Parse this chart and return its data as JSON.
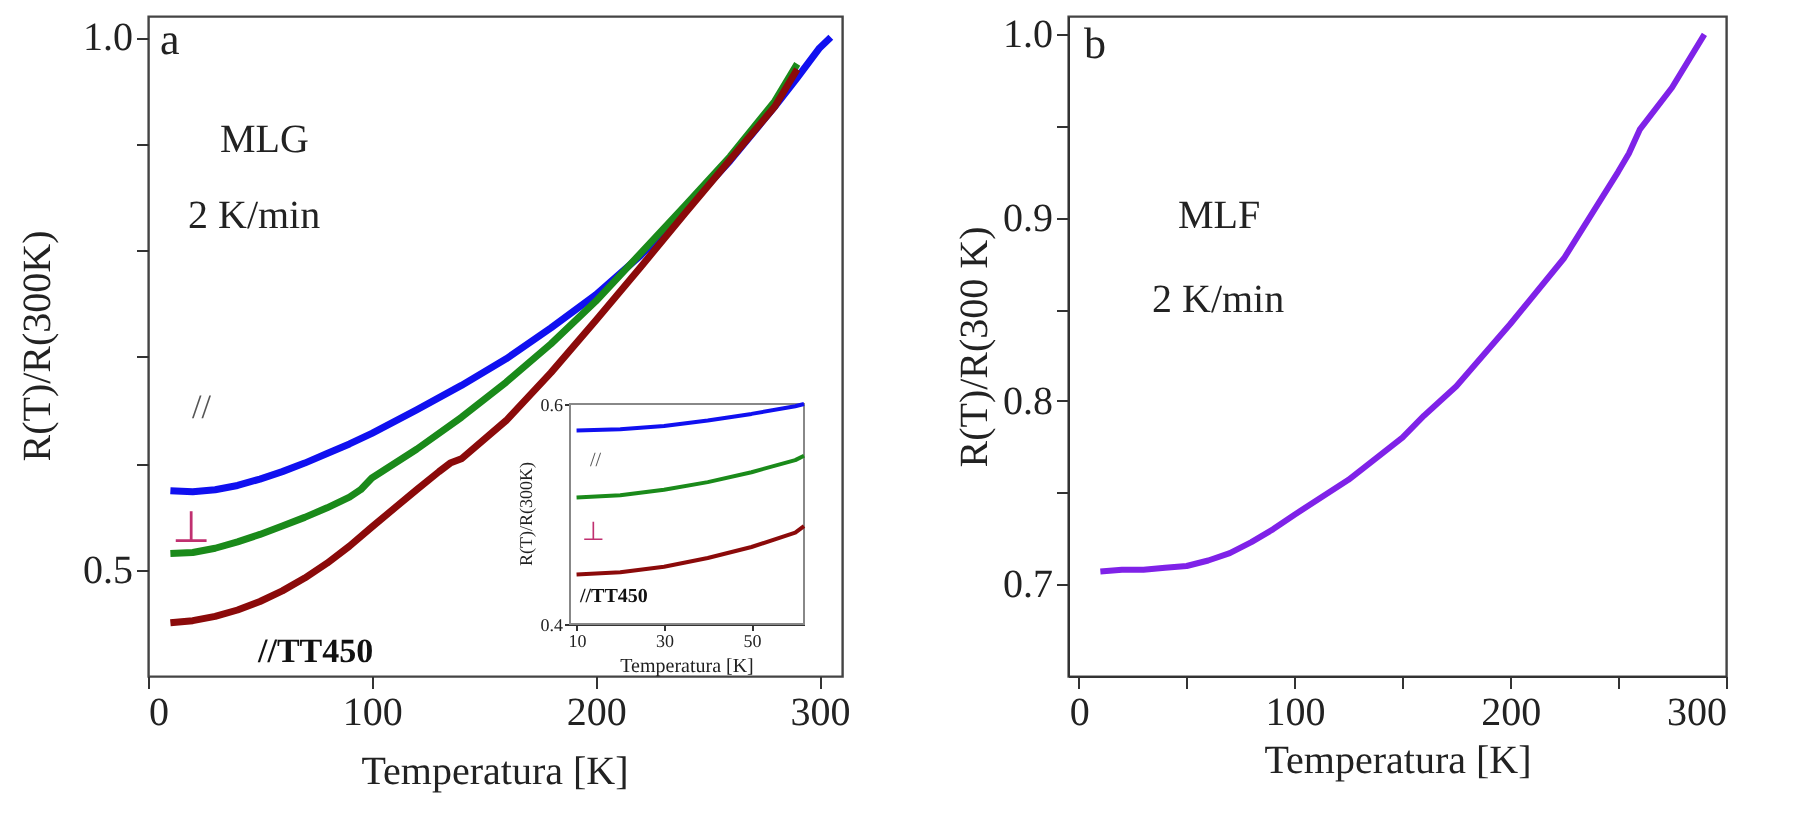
{
  "chart_data": [
    {
      "type": "line",
      "xlabel": "Temperatura   [K]",
      "ylabel": "R(T)/R(300K)",
      "annotations": [
        "a",
        "MLG",
        "2  K/min"
      ],
      "xlim": [
        0,
        310
      ],
      "xticks": [
        0,
        100,
        200,
        300
      ],
      "ylim": [
        0.4,
        1.02
      ],
      "yticks": [
        0.5,
        {
          "value": 0.6,
          "label": null
        },
        {
          "value": 0.7,
          "label": null
        },
        {
          "value": 0.8,
          "label": null
        },
        {
          "value": 0.9,
          "label": null
        },
        {
          "value": 1.0,
          "label": "1.0"
        }
      ],
      "grid": false,
      "legend": false,
      "marker": "none",
      "line_style": "solid",
      "series": [
        {
          "name": "//",
          "color": "#1010f0",
          "x": [
            10,
            20,
            30,
            40,
            50,
            60,
            70,
            80,
            90,
            100,
            120,
            140,
            160,
            180,
            200,
            220,
            240,
            260,
            280,
            290,
            300,
            305
          ],
          "values": [
            0.574,
            0.573,
            0.575,
            0.579,
            0.585,
            0.592,
            0.6,
            0.609,
            0.618,
            0.628,
            0.65,
            0.673,
            0.698,
            0.727,
            0.758,
            0.795,
            0.838,
            0.884,
            0.935,
            0.962,
            0.99,
            1.0
          ]
        },
        {
          "name": "⊥",
          "color": "#1a8a1a",
          "x": [
            10,
            20,
            30,
            40,
            50,
            60,
            70,
            80,
            90,
            95,
            100,
            120,
            140,
            160,
            180,
            200,
            220,
            240,
            260,
            280,
            290
          ],
          "values": [
            0.515,
            0.516,
            0.52,
            0.526,
            0.533,
            0.541,
            0.549,
            0.558,
            0.568,
            0.575,
            0.586,
            0.613,
            0.643,
            0.676,
            0.712,
            0.752,
            0.797,
            0.842,
            0.888,
            0.94,
            0.975
          ]
        },
        {
          "name": "//TT450",
          "color": "#8b0a0a",
          "x": [
            10,
            20,
            30,
            40,
            50,
            60,
            70,
            80,
            90,
            100,
            120,
            130,
            135,
            140,
            160,
            180,
            200,
            220,
            240,
            260,
            280,
            290
          ],
          "values": [
            0.45,
            0.452,
            0.456,
            0.462,
            0.47,
            0.48,
            0.492,
            0.506,
            0.522,
            0.54,
            0.575,
            0.592,
            0.6,
            0.604,
            0.64,
            0.685,
            0.734,
            0.784,
            0.835,
            0.885,
            0.935,
            0.97
          ]
        }
      ]
    },
    {
      "type": "line",
      "xlabel": "Temperatura   [K]",
      "ylabel": "R(T)/R(300K)",
      "xlim": [
        8.5,
        62
      ],
      "xticks": [
        10,
        30,
        50
      ],
      "ylim": [
        0.4,
        0.6
      ],
      "yticks": [
        0.4,
        0.6
      ],
      "grid": false,
      "legend": false,
      "marker": "none",
      "line_style": "solid",
      "series": [
        {
          "name": "//",
          "color": "#1010f0",
          "x": [
            10,
            20,
            30,
            40,
            50,
            60,
            62
          ],
          "values": [
            0.576,
            0.577,
            0.58,
            0.585,
            0.591,
            0.598,
            0.6
          ]
        },
        {
          "name": "⊥",
          "color": "#1a8a1a",
          "x": [
            10,
            20,
            30,
            40,
            50,
            60,
            62
          ],
          "values": [
            0.515,
            0.517,
            0.522,
            0.529,
            0.538,
            0.549,
            0.553
          ]
        },
        {
          "name": "//TT450",
          "color": "#8b0a0a",
          "x": [
            10,
            20,
            30,
            40,
            50,
            60,
            62
          ],
          "values": [
            0.445,
            0.447,
            0.452,
            0.46,
            0.47,
            0.483,
            0.489
          ]
        }
      ]
    },
    {
      "type": "line",
      "xlabel": "Temperatura   [K]",
      "ylabel": "R(T)/R(300 K)",
      "annotations": [
        "b",
        "MLF",
        "2 K/min"
      ],
      "xlim": [
        -5,
        300
      ],
      "xticks": [
        0,
        {
          "value": 50,
          "label": null
        },
        100,
        {
          "value": 150,
          "label": null
        },
        200,
        {
          "value": 250,
          "label": null
        },
        300
      ],
      "ylim": [
        0.65,
        1.01
      ],
      "yticks": [
        0.7,
        {
          "value": 0.75,
          "label": null
        },
        0.8,
        {
          "value": 0.85,
          "label": null
        },
        0.9,
        {
          "value": 0.95,
          "label": null
        },
        {
          "value": 1.0,
          "label": "1.0"
        }
      ],
      "grid": false,
      "legend": false,
      "marker": "none",
      "line_style": "solid",
      "series": [
        {
          "color": "#7f22e8",
          "x": [
            10,
            20,
            30,
            40,
            50,
            60,
            70,
            80,
            90,
            100,
            125,
            150,
            160,
            175,
            200,
            225,
            250,
            255,
            260,
            275,
            290
          ],
          "values": [
            0.707,
            0.708,
            0.708,
            0.709,
            0.71,
            0.713,
            0.717,
            0.723,
            0.73,
            0.738,
            0.757,
            0.78,
            0.792,
            0.808,
            0.842,
            0.878,
            0.925,
            0.935,
            0.948,
            0.971,
            1.0
          ]
        }
      ]
    }
  ]
}
